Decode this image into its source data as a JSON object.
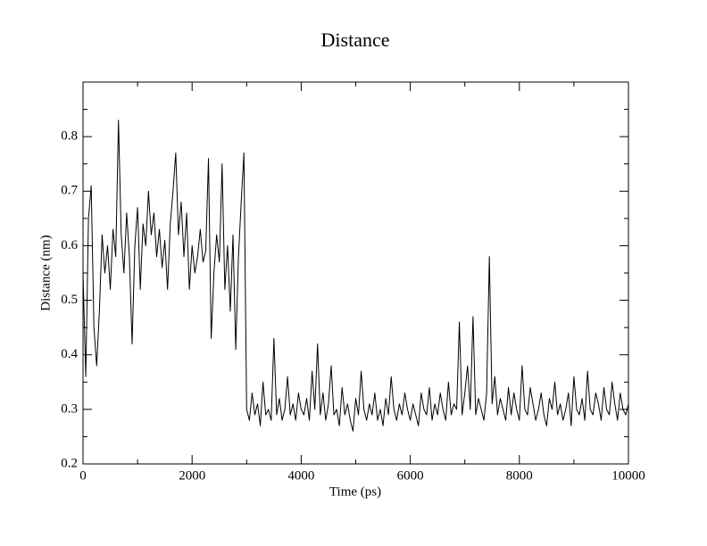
{
  "chart_data": {
    "type": "line",
    "title": "Distance",
    "xlabel": "Time (ps)",
    "ylabel": "Distance (nm)",
    "xlim": [
      0,
      10000
    ],
    "xticks": [
      0,
      2000,
      4000,
      6000,
      8000,
      10000
    ],
    "xminorticks": [
      1000,
      3000,
      5000,
      7000,
      9000
    ],
    "ylim": [
      0.2,
      0.9
    ],
    "yticks": [
      0.2,
      0.3,
      0.4,
      0.5,
      0.6,
      0.7,
      0.8
    ],
    "yminorticks": [
      0.25,
      0.35,
      0.45,
      0.55,
      0.65,
      0.75,
      0.85
    ],
    "grid": false,
    "series": [
      {
        "color": "#000000",
        "x": [
          0,
          50,
          100,
          150,
          200,
          250,
          300,
          350,
          400,
          450,
          500,
          550,
          600,
          650,
          700,
          750,
          800,
          850,
          900,
          950,
          1000,
          1050,
          1100,
          1150,
          1200,
          1250,
          1300,
          1350,
          1400,
          1450,
          1500,
          1550,
          1600,
          1650,
          1700,
          1750,
          1800,
          1850,
          1900,
          1950,
          2000,
          2050,
          2100,
          2150,
          2200,
          2250,
          2300,
          2350,
          2400,
          2450,
          2500,
          2550,
          2600,
          2650,
          2700,
          2750,
          2800,
          2850,
          2900,
          2950,
          3000,
          3050,
          3100,
          3150,
          3200,
          3250,
          3300,
          3350,
          3400,
          3450,
          3500,
          3550,
          3600,
          3650,
          3700,
          3750,
          3800,
          3850,
          3900,
          3950,
          4000,
          4050,
          4100,
          4150,
          4200,
          4250,
          4300,
          4350,
          4400,
          4450,
          4500,
          4550,
          4600,
          4650,
          4700,
          4750,
          4800,
          4850,
          4900,
          4950,
          5000,
          5050,
          5100,
          5150,
          5200,
          5250,
          5300,
          5350,
          5400,
          5450,
          5500,
          5550,
          5600,
          5650,
          5700,
          5750,
          5800,
          5850,
          5900,
          5950,
          6000,
          6050,
          6100,
          6150,
          6200,
          6250,
          6300,
          6350,
          6400,
          6450,
          6500,
          6550,
          6600,
          6650,
          6700,
          6750,
          6800,
          6850,
          6900,
          6950,
          7000,
          7050,
          7100,
          7150,
          7200,
          7250,
          7300,
          7350,
          7400,
          7450,
          7500,
          7550,
          7600,
          7650,
          7700,
          7750,
          7800,
          7850,
          7900,
          7950,
          8000,
          8050,
          8100,
          8150,
          8200,
          8250,
          8300,
          8350,
          8400,
          8450,
          8500,
          8550,
          8600,
          8650,
          8700,
          8750,
          8800,
          8850,
          8900,
          8950,
          9000,
          9050,
          9100,
          9150,
          9200,
          9250,
          9300,
          9350,
          9400,
          9450,
          9500,
          9550,
          9600,
          9650,
          9700,
          9750,
          9800,
          9850,
          9900,
          9950,
          10000
        ],
        "values": [
          0.55,
          0.36,
          0.65,
          0.71,
          0.45,
          0.38,
          0.48,
          0.62,
          0.55,
          0.6,
          0.52,
          0.63,
          0.58,
          0.83,
          0.62,
          0.55,
          0.66,
          0.58,
          0.42,
          0.6,
          0.67,
          0.52,
          0.64,
          0.6,
          0.7,
          0.62,
          0.66,
          0.58,
          0.63,
          0.56,
          0.61,
          0.52,
          0.64,
          0.7,
          0.77,
          0.62,
          0.68,
          0.58,
          0.66,
          0.52,
          0.6,
          0.55,
          0.58,
          0.63,
          0.57,
          0.59,
          0.76,
          0.43,
          0.55,
          0.62,
          0.57,
          0.75,
          0.52,
          0.6,
          0.48,
          0.62,
          0.41,
          0.58,
          0.68,
          0.77,
          0.3,
          0.28,
          0.33,
          0.29,
          0.31,
          0.27,
          0.35,
          0.29,
          0.3,
          0.28,
          0.43,
          0.29,
          0.32,
          0.28,
          0.3,
          0.36,
          0.29,
          0.31,
          0.28,
          0.33,
          0.3,
          0.29,
          0.32,
          0.28,
          0.37,
          0.3,
          0.42,
          0.29,
          0.33,
          0.28,
          0.31,
          0.38,
          0.29,
          0.3,
          0.27,
          0.34,
          0.29,
          0.31,
          0.28,
          0.26,
          0.32,
          0.29,
          0.37,
          0.3,
          0.28,
          0.31,
          0.29,
          0.33,
          0.28,
          0.3,
          0.27,
          0.32,
          0.29,
          0.36,
          0.3,
          0.28,
          0.31,
          0.29,
          0.33,
          0.3,
          0.28,
          0.31,
          0.29,
          0.27,
          0.33,
          0.3,
          0.29,
          0.34,
          0.28,
          0.31,
          0.29,
          0.33,
          0.3,
          0.28,
          0.35,
          0.29,
          0.31,
          0.3,
          0.46,
          0.29,
          0.33,
          0.38,
          0.3,
          0.47,
          0.29,
          0.32,
          0.3,
          0.28,
          0.33,
          0.58,
          0.31,
          0.36,
          0.29,
          0.32,
          0.3,
          0.28,
          0.34,
          0.29,
          0.33,
          0.3,
          0.28,
          0.38,
          0.3,
          0.29,
          0.34,
          0.31,
          0.28,
          0.3,
          0.33,
          0.29,
          0.27,
          0.32,
          0.3,
          0.35,
          0.29,
          0.31,
          0.28,
          0.3,
          0.33,
          0.27,
          0.36,
          0.3,
          0.29,
          0.32,
          0.28,
          0.37,
          0.3,
          0.29,
          0.33,
          0.31,
          0.28,
          0.34,
          0.3,
          0.29,
          0.35,
          0.31,
          0.28,
          0.33,
          0.3,
          0.29,
          0.31
        ]
      }
    ]
  }
}
